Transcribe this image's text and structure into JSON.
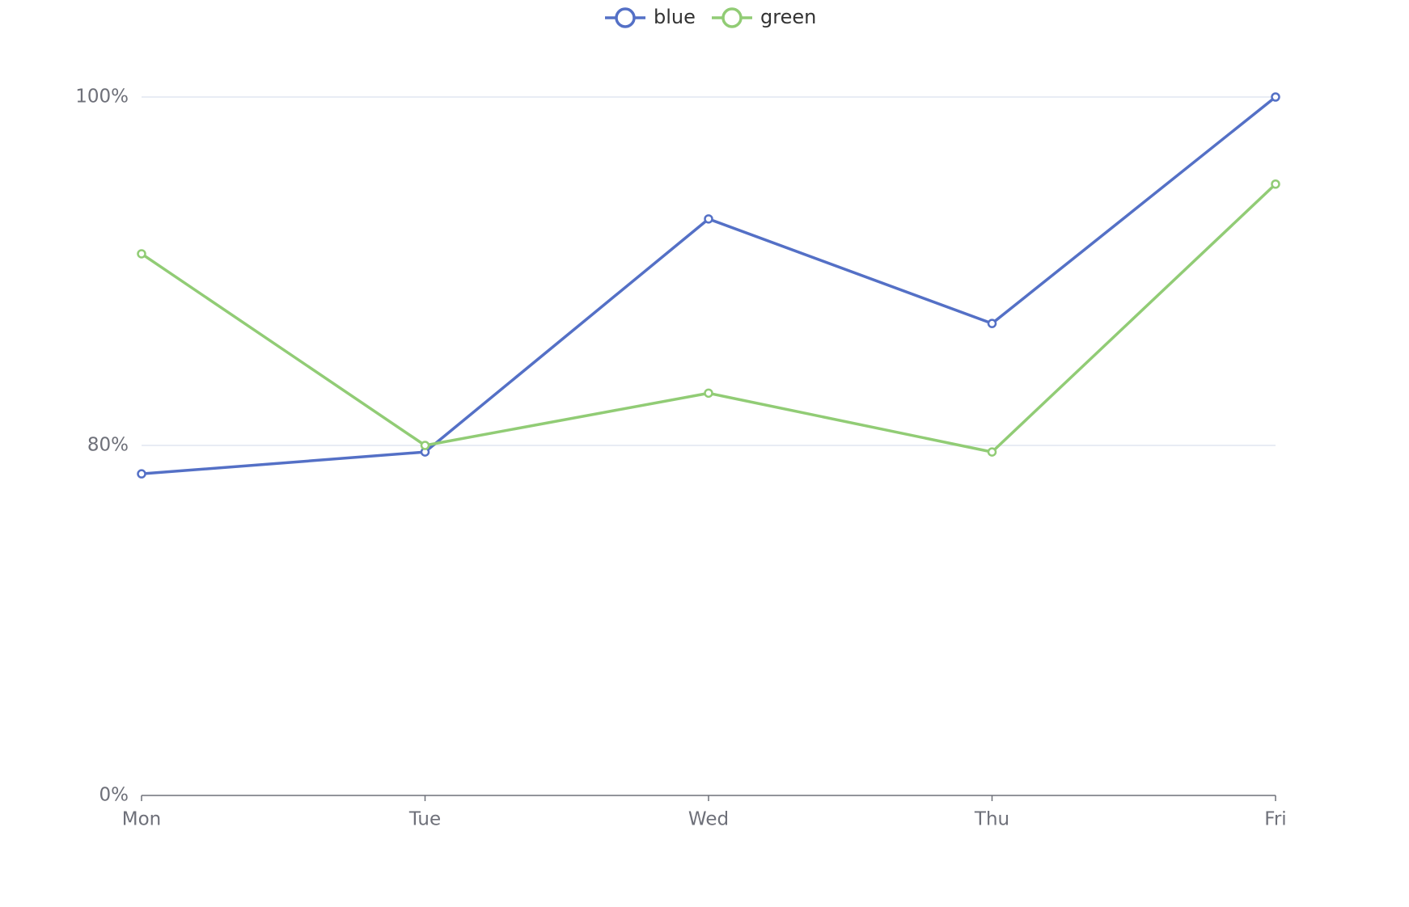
{
  "chart_data": {
    "type": "line",
    "title": "",
    "xlabel": "",
    "ylabel": "",
    "categories": [
      "Mon",
      "Tue",
      "Wed",
      "Thu",
      "Fri"
    ],
    "y_ticks": [
      "0%",
      "80%",
      "100%"
    ],
    "y_tick_values": [
      0,
      80,
      100
    ],
    "y_scale": "piecewise",
    "ylim": [
      0,
      100
    ],
    "grid": true,
    "legend_position": "top-center",
    "series": [
      {
        "name": "blue",
        "color": "#5470c6",
        "values": [
          73.5,
          78.5,
          93,
          87,
          100
        ]
      },
      {
        "name": "green",
        "color": "#91cc75",
        "values": [
          91,
          80,
          83,
          78.5,
          95
        ]
      }
    ]
  }
}
